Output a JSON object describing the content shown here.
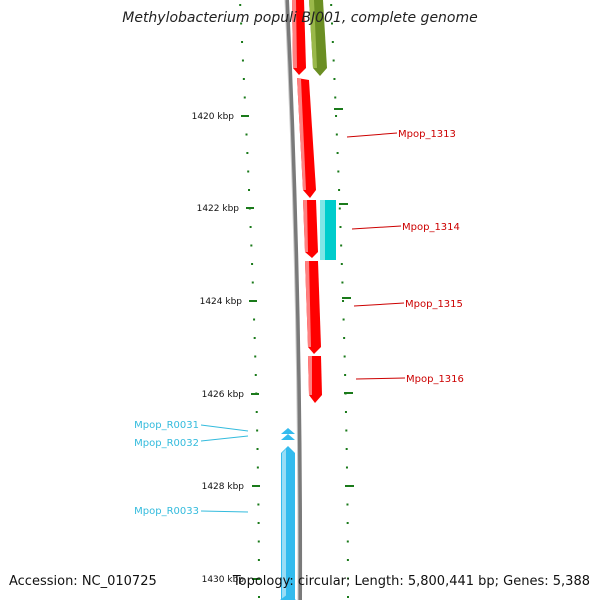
{
  "title": "Methylobacterium populi BJ001, complete genome",
  "accession": "Accession: NC_010725",
  "summary": "Topology: circular; Length: 5,800,441 bp; Genes: 5,388",
  "ticks": [
    "1420 kbp",
    "1422 kbp",
    "1424 kbp",
    "1426 kbp",
    "1428 kbp",
    "1430 kbp"
  ],
  "genes_forward_strand": [
    "Mpop_1313",
    "Mpop_1314",
    "Mpop_1315",
    "Mpop_1316"
  ],
  "genes_reverse_strand": [
    "Mpop_R0031",
    "Mpop_R0032",
    "Mpop_R0033"
  ],
  "colors": {
    "cds": "#ff0000",
    "cds_alt": "#00cccc",
    "cds_top": "#6b8e23",
    "rna": "#33bbee",
    "backbone": "#808080",
    "ticks": "#1a7a1a",
    "label_cds": "#cc0000",
    "label_rna": "#33bbdd"
  }
}
